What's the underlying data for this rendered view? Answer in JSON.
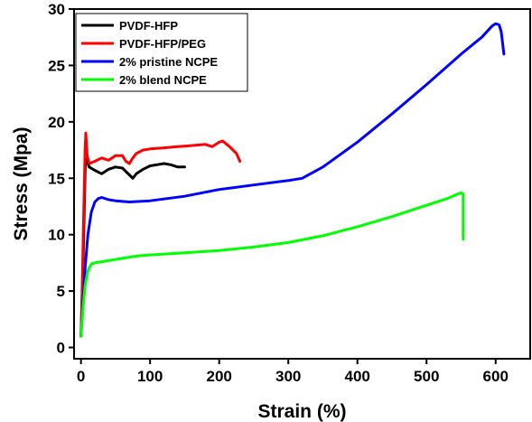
{
  "chart_data": {
    "type": "line",
    "title": "",
    "xlabel": "Strain (%)",
    "ylabel": "Stress (Mpa)",
    "xlim": [
      -10,
      650
    ],
    "ylim": [
      -1,
      30
    ],
    "xticks": [
      0,
      100,
      200,
      300,
      400,
      500,
      600
    ],
    "yticks": [
      0,
      5,
      10,
      15,
      20,
      25,
      30
    ],
    "grid": false,
    "legend_position": "top-left",
    "series": [
      {
        "name": "PVDF-HFP",
        "color": "#000000",
        "x": [
          0,
          2,
          4,
          6,
          7,
          9,
          12,
          20,
          30,
          40,
          50,
          60,
          70,
          75,
          80,
          90,
          100,
          110,
          120,
          130,
          140,
          150
        ],
        "y": [
          1.0,
          5.0,
          10.0,
          15.5,
          17.3,
          16.5,
          16.0,
          15.7,
          15.4,
          15.8,
          16.0,
          15.9,
          15.3,
          15.0,
          15.4,
          15.8,
          16.1,
          16.2,
          16.3,
          16.2,
          16.0,
          16.0
        ]
      },
      {
        "name": "PVDF-HFP/PEG",
        "color": "#ff0000",
        "x": [
          0,
          2,
          4,
          6,
          7,
          9,
          12,
          20,
          30,
          40,
          50,
          60,
          65,
          70,
          75,
          80,
          90,
          100,
          120,
          140,
          160,
          180,
          190,
          200,
          205,
          215,
          225,
          230
        ],
        "y": [
          1.0,
          6.0,
          12.0,
          17.5,
          19.0,
          17.0,
          16.3,
          16.5,
          16.8,
          16.6,
          17.0,
          17.0,
          16.5,
          16.3,
          16.8,
          17.2,
          17.5,
          17.6,
          17.7,
          17.8,
          17.9,
          18.0,
          17.8,
          18.2,
          18.3,
          17.8,
          17.2,
          16.5
        ]
      },
      {
        "name": "2% pristine NCPE",
        "color": "#0000ff",
        "x": [
          0,
          3,
          6,
          10,
          15,
          20,
          25,
          30,
          40,
          50,
          70,
          100,
          150,
          200,
          250,
          300,
          320,
          350,
          400,
          450,
          500,
          550,
          580,
          595,
          600,
          605,
          608,
          610,
          612
        ],
        "y": [
          1.0,
          4.0,
          7.0,
          10.0,
          12.0,
          12.9,
          13.2,
          13.3,
          13.1,
          13.0,
          12.9,
          13.0,
          13.4,
          14.0,
          14.4,
          14.8,
          15.0,
          16.0,
          18.2,
          20.7,
          23.3,
          26.0,
          27.5,
          28.5,
          28.7,
          28.6,
          28.0,
          27.0,
          26.0
        ]
      },
      {
        "name": "2% blend NCPE",
        "color": "#00ff00",
        "x": [
          0,
          3,
          6,
          10,
          15,
          20,
          30,
          40,
          60,
          80,
          100,
          150,
          200,
          250,
          300,
          350,
          400,
          450,
          500,
          530,
          545,
          550,
          553,
          553
        ],
        "y": [
          1.0,
          3.5,
          5.5,
          6.8,
          7.4,
          7.5,
          7.6,
          7.7,
          7.9,
          8.1,
          8.2,
          8.4,
          8.6,
          8.9,
          9.3,
          9.9,
          10.7,
          11.6,
          12.6,
          13.2,
          13.6,
          13.7,
          13.6,
          9.6
        ]
      }
    ]
  }
}
